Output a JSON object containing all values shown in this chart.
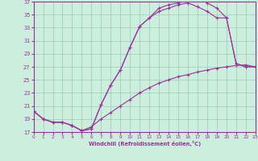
{
  "xlabel": "Windchill (Refroidissement éolien,°C)",
  "background_color": "#cceedd",
  "grid_color": "#99ccbb",
  "line_color": "#993399",
  "xlim": [
    0,
    23
  ],
  "ylim": [
    17,
    37
  ],
  "xticks": [
    0,
    1,
    2,
    3,
    4,
    5,
    6,
    7,
    8,
    9,
    10,
    11,
    12,
    13,
    14,
    15,
    16,
    17,
    18,
    19,
    20,
    21,
    22,
    23
  ],
  "yticks": [
    17,
    19,
    21,
    23,
    25,
    27,
    29,
    31,
    33,
    35,
    37
  ],
  "curve1_x": [
    0,
    1,
    2,
    3,
    4,
    5,
    6,
    7,
    8,
    9,
    10,
    11,
    12,
    13,
    14,
    15,
    16,
    17,
    18,
    19,
    20,
    21,
    22,
    23
  ],
  "curve1_y": [
    20.2,
    19.0,
    18.5,
    18.5,
    18.0,
    17.2,
    17.5,
    21.2,
    24.2,
    26.5,
    30.0,
    33.2,
    34.5,
    36.0,
    36.5,
    36.8,
    37.2,
    37.5,
    36.8,
    36.0,
    34.5,
    27.5,
    27.0,
    27.0
  ],
  "curve2_x": [
    0,
    1,
    2,
    3,
    4,
    5,
    6,
    7,
    8,
    9,
    10,
    11,
    12,
    13,
    14,
    15,
    16,
    17,
    18,
    19,
    20,
    21,
    22,
    23
  ],
  "curve2_y": [
    20.2,
    19.0,
    18.5,
    18.5,
    18.0,
    17.2,
    17.5,
    21.2,
    24.2,
    26.5,
    30.0,
    33.2,
    34.5,
    35.5,
    36.0,
    36.5,
    36.8,
    36.2,
    35.5,
    34.5,
    34.5,
    27.5,
    27.0,
    27.0
  ],
  "curve3_x": [
    0,
    1,
    2,
    3,
    4,
    5,
    6,
    7,
    8,
    9,
    10,
    11,
    12,
    13,
    14,
    15,
    16,
    17,
    18,
    19,
    20,
    21,
    22,
    23
  ],
  "curve3_y": [
    20.2,
    19.0,
    18.5,
    18.5,
    18.0,
    17.2,
    17.8,
    19.0,
    20.0,
    21.0,
    22.0,
    23.0,
    23.8,
    24.5,
    25.0,
    25.5,
    25.8,
    26.2,
    26.5,
    26.8,
    27.0,
    27.2,
    27.3,
    27.0
  ]
}
